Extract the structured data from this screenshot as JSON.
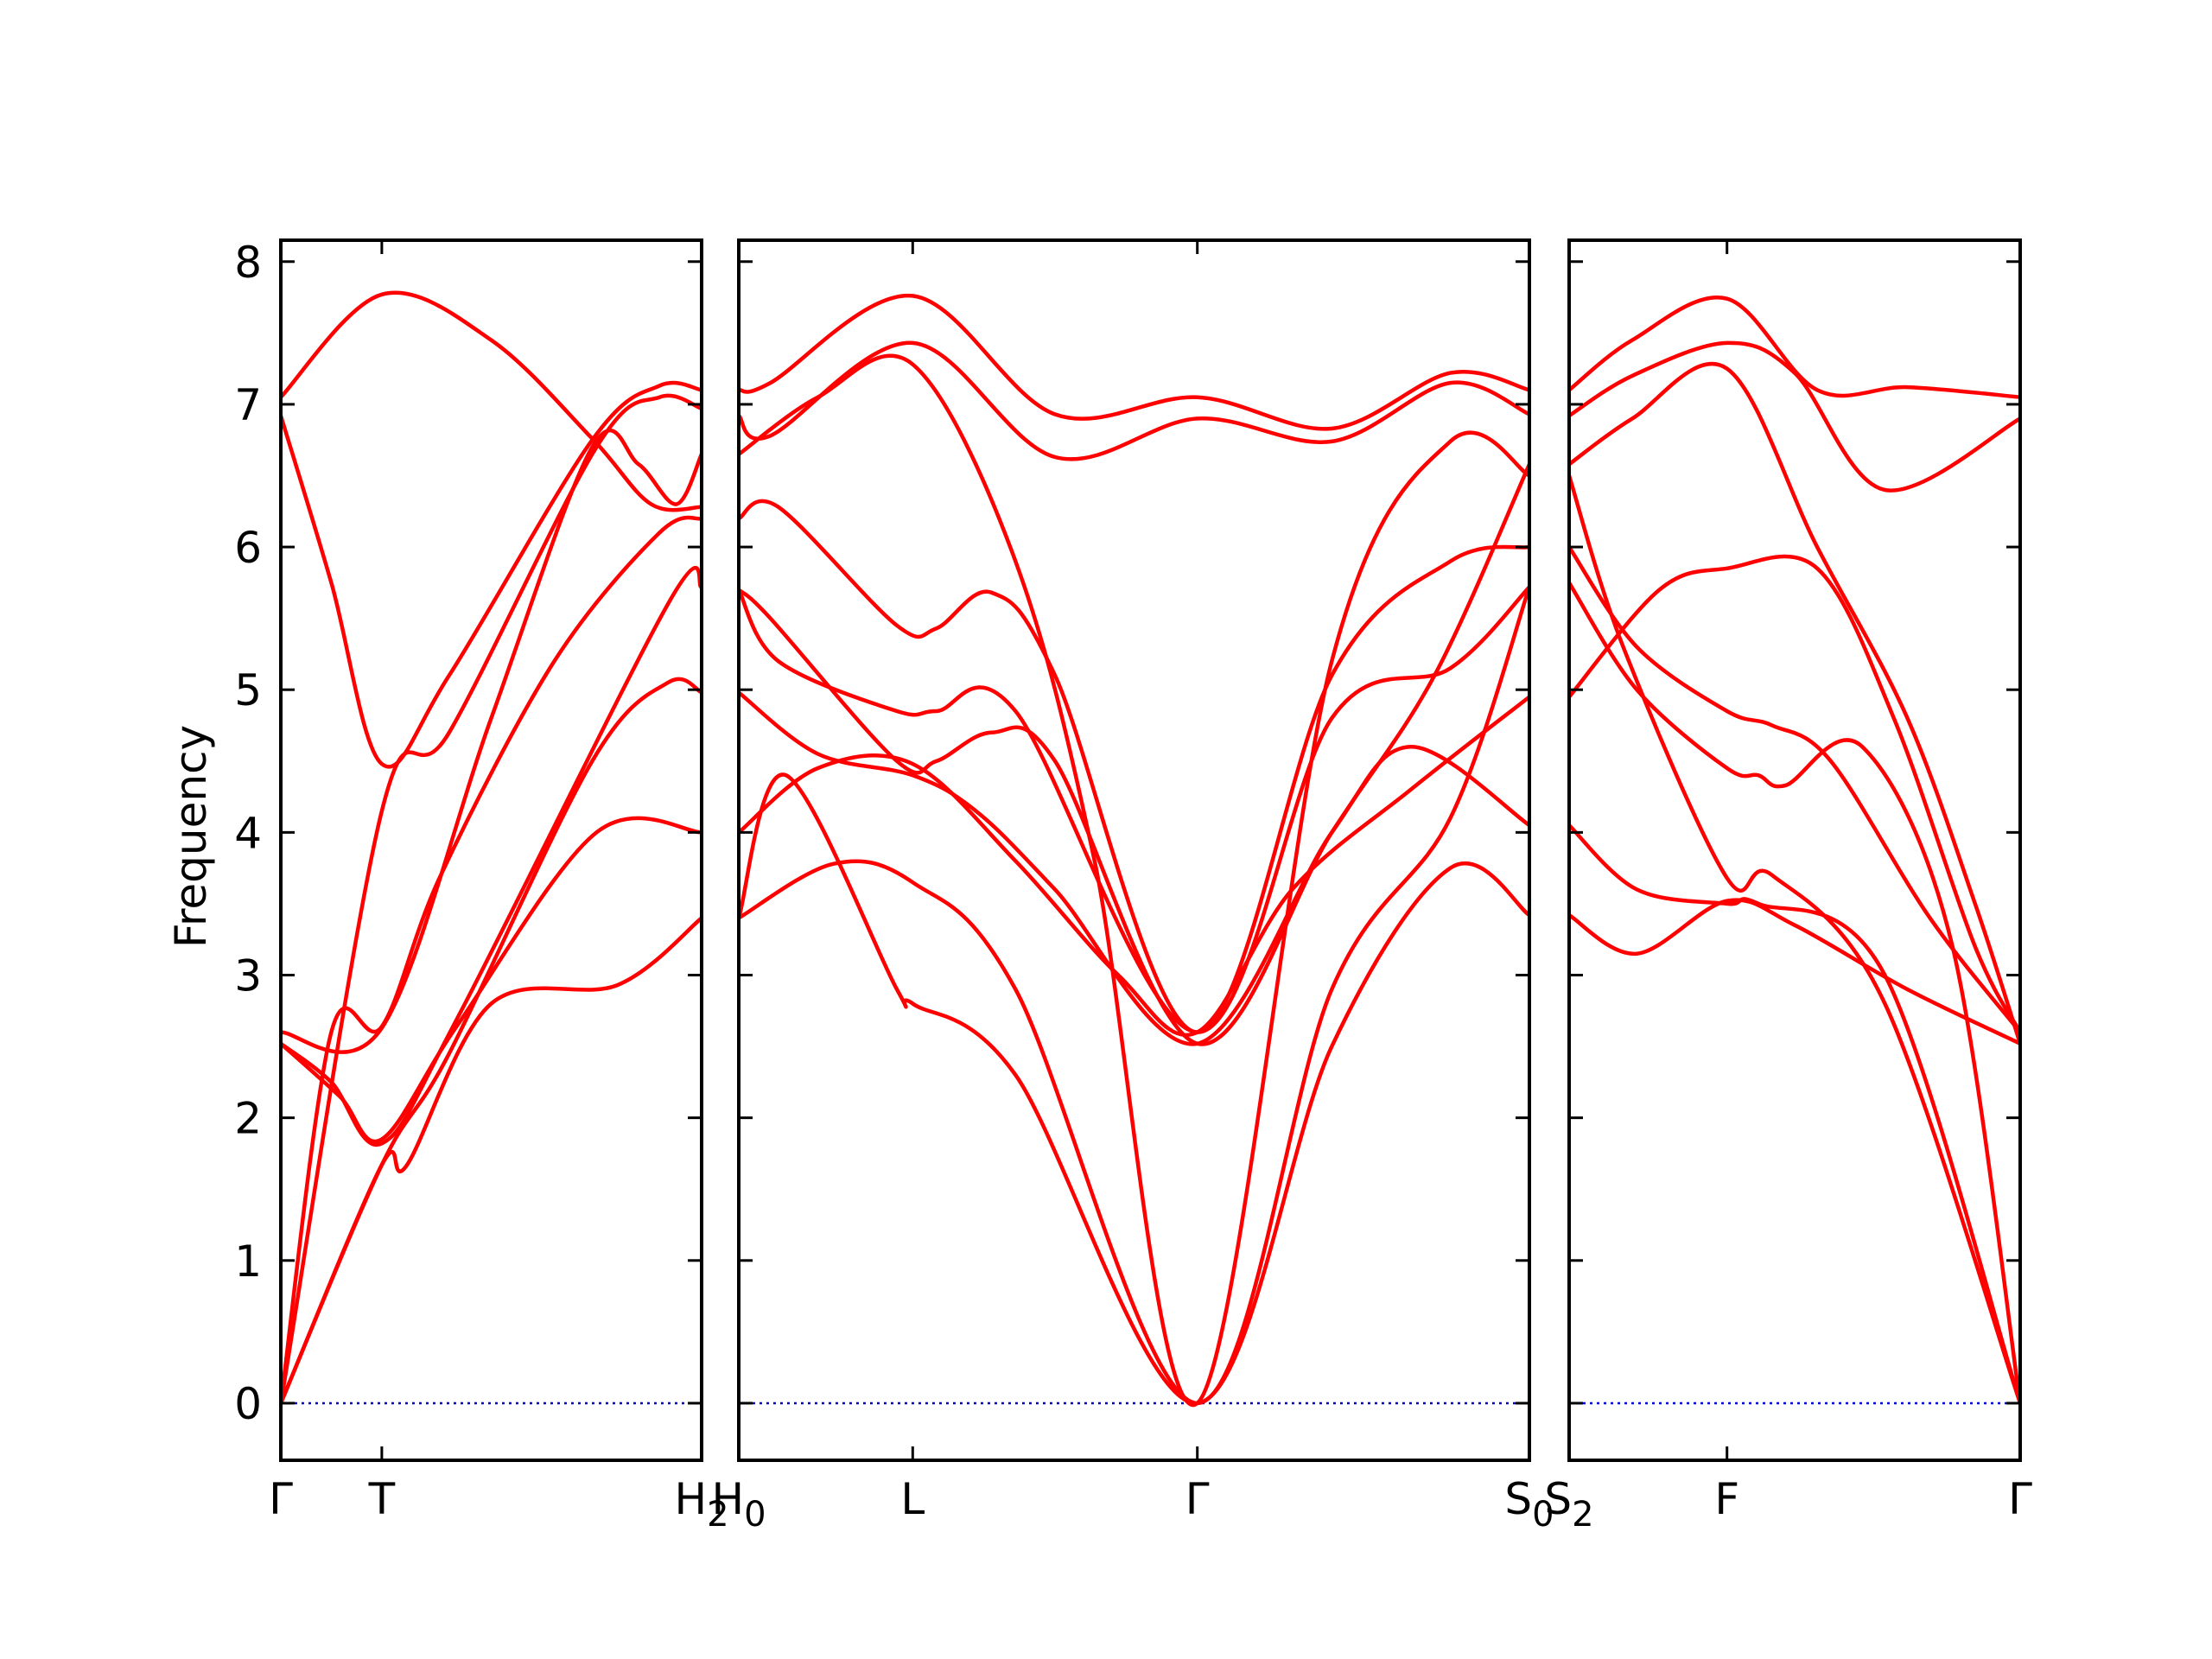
{
  "chart_data": {
    "type": "line",
    "title": "",
    "ylabel": "Frequency",
    "ylim": [
      -0.4,
      8.15
    ],
    "yticks": [
      0,
      1,
      2,
      3,
      4,
      5,
      6,
      7,
      8
    ],
    "ytick_labels": [
      "0",
      "1",
      "2",
      "3",
      "4",
      "5",
      "6",
      "7",
      "8"
    ],
    "grid": false,
    "legend": "none",
    "colors": {
      "bands": "#ff0000",
      "zero_line": "#0000cc",
      "axes": "#000000"
    },
    "x_labels": [
      {
        "text": "Γ",
        "sub": ""
      },
      {
        "text": "T",
        "sub": ""
      },
      {
        "text": "H",
        "sub": "2"
      },
      {
        "text": "H",
        "sub": "0"
      },
      {
        "text": "L",
        "sub": ""
      },
      {
        "text": "Γ",
        "sub": ""
      },
      {
        "text": "S",
        "sub": "0"
      },
      {
        "text": "S",
        "sub": "2"
      },
      {
        "text": "F",
        "sub": ""
      },
      {
        "text": "Γ",
        "sub": ""
      }
    ],
    "panels": [
      {
        "xrange": [
          0,
          1
        ],
        "ticks": [
          0,
          0.24,
          1
        ],
        "series": [
          {
            "x": [
              0,
              0.24,
              0.5,
              0.74,
              0.88,
              1
            ],
            "y": [
              7.05,
              7.77,
              7.45,
              6.76,
              6.3,
              6.28
            ]
          },
          {
            "x": [
              0,
              0.12,
              0.24,
              0.4,
              0.74,
              0.9,
              1
            ],
            "y": [
              6.92,
              5.75,
              4.48,
              5.1,
              6.75,
              7.13,
              7.1
            ]
          },
          {
            "x": [
              0,
              0.24,
              0.4,
              0.75,
              0.9,
              1
            ],
            "y": [
              0,
              4.15,
              4.7,
              6.7,
              7.05,
              6.97
            ]
          },
          {
            "x": [
              0,
              0.24,
              0.5,
              0.74,
              0.85,
              0.94,
              1
            ],
            "y": [
              2.6,
              2.63,
              4.8,
              6.7,
              6.58,
              6.3,
              6.65
            ]
          },
          {
            "x": [
              0,
              0.12,
              0.24,
              0.38,
              0.65,
              0.9,
              1
            ],
            "y": [
              0,
              2.6,
              2.64,
              3.7,
              5.2,
              6.1,
              6.2
            ]
          },
          {
            "x": [
              0,
              0.12,
              0.24,
              0.42,
              0.92,
              1
            ],
            "y": [
              2.52,
              2.25,
              1.82,
              2.7,
              5.6,
              5.72
            ]
          },
          {
            "x": [
              0,
              0.24,
              0.4,
              0.74,
              0.92,
              1
            ],
            "y": [
              0,
              1.67,
              2.45,
              4.5,
              5.05,
              4.98
            ]
          },
          {
            "x": [
              0,
              0.14,
              0.24,
              0.42,
              0.75,
              1
            ],
            "y": [
              2.52,
              2.15,
              1.85,
              2.65,
              4.0,
              4.0
            ]
          },
          {
            "x": [
              0,
              0.24,
              0.3,
              0.5,
              0.8,
              1
            ],
            "y": [
              0,
              1.67,
              1.67,
              2.8,
              2.93,
              3.4
            ]
          }
        ]
      },
      {
        "xrange": [
          0,
          1
        ],
        "ticks": [
          0,
          0.22,
          0.58,
          1
        ],
        "series": [
          {
            "x": [
              0,
              0.04,
              0.22,
              0.4,
              0.58,
              0.75,
              0.9,
              1
            ],
            "y": [
              7.1,
              7.15,
              7.76,
              6.93,
              7.05,
              6.83,
              7.22,
              7.1
            ]
          },
          {
            "x": [
              0,
              0.04,
              0.22,
              0.4,
              0.58,
              0.75,
              0.9,
              1
            ],
            "y": [
              6.92,
              6.78,
              7.43,
              6.63,
              6.9,
              6.74,
              7.15,
              6.93
            ]
          },
          {
            "x": [
              0,
              0.1,
              0.22,
              0.35,
              0.45,
              0.58,
              0.75,
              0.9,
              1
            ],
            "y": [
              6.65,
              7.05,
              7.28,
              5.9,
              3.8,
              0,
              5.2,
              6.74,
              6.5
            ]
          },
          {
            "x": [
              0,
              0.05,
              0.2,
              0.25,
              0.32,
              0.4,
              0.58,
              0.75,
              0.9,
              1
            ],
            "y": [
              6.2,
              6.28,
              5.45,
              5.43,
              5.68,
              5.1,
              2.6,
              5.1,
              5.9,
              6.0
            ]
          },
          {
            "x": [
              0,
              0.04,
              0.2,
              0.25,
              0.32,
              0.4,
              0.58,
              0.75,
              0.88,
              1
            ],
            "y": [
              5.7,
              5.5,
              4.5,
              4.5,
              4.7,
              4.5,
              2.52,
              4.0,
              5.1,
              6.58
            ]
          },
          {
            "x": [
              0,
              0.1,
              0.22,
              0.3,
              0.4,
              0.58,
              0.75,
              0.85,
              1
            ],
            "y": [
              4.98,
              4.55,
              4.4,
              4.15,
              3.6,
              2.52,
              4.0,
              4.6,
              4.05
            ]
          },
          {
            "x": [
              0,
              0.05,
              0.2,
              0.25,
              0.35,
              0.58,
              0.75,
              0.9,
              1
            ],
            "y": [
              5.7,
              5.2,
              4.85,
              4.85,
              4.85,
              2.6,
              4.8,
              5.15,
              5.72
            ]
          },
          {
            "x": [
              0,
              0.1,
              0.22,
              0.35,
              0.48,
              0.58,
              0.7,
              0.85,
              1
            ],
            "y": [
              4.0,
              4.45,
              4.48,
              3.8,
              3.0,
              2.6,
              3.6,
              4.3,
              4.95
            ]
          },
          {
            "x": [
              0,
              0.06,
              0.2,
              0.22,
              0.35,
              0.58,
              0.75,
              0.9,
              1
            ],
            "y": [
              3.4,
              4.4,
              2.9,
              2.8,
              2.3,
              0,
              2.5,
              3.75,
              3.42
            ]
          },
          {
            "x": [
              0,
              0.12,
              0.22,
              0.35,
              0.58,
              0.75,
              0.9,
              1
            ],
            "y": [
              3.4,
              3.78,
              3.65,
              2.9,
              0,
              2.9,
              4.1,
              5.72
            ]
          }
        ]
      },
      {
        "xrange": [
          0,
          1
        ],
        "ticks": [
          0,
          0.35,
          1
        ],
        "series": [
          {
            "x": [
              0,
              0.14,
              0.35,
              0.55,
              0.75,
              1
            ],
            "y": [
              7.1,
              7.45,
              7.74,
              7.1,
              7.12,
              7.05
            ]
          },
          {
            "x": [
              0,
              0.14,
              0.35,
              0.5,
              0.7,
              1
            ],
            "y": [
              6.92,
              7.2,
              7.43,
              7.22,
              6.4,
              6.9
            ]
          },
          {
            "x": [
              0,
              0.14,
              0.35,
              0.55,
              0.75,
              0.9,
              1
            ],
            "y": [
              6.58,
              6.9,
              7.25,
              6.0,
              4.8,
              3.5,
              2.52
            ]
          },
          {
            "x": [
              0,
              0.2,
              0.35,
              0.55,
              0.72,
              0.9,
              1
            ],
            "y": [
              4.95,
              5.7,
              5.85,
              5.85,
              4.8,
              3.2,
              2.6
            ]
          },
          {
            "x": [
              0,
              0.15,
              0.35,
              0.45,
              0.58,
              0.8,
              1
            ],
            "y": [
              6.0,
              5.3,
              4.85,
              4.75,
              4.5,
              3.4,
              2.6
            ]
          },
          {
            "x": [
              0,
              0.15,
              0.35,
              0.42,
              0.48,
              0.65,
              0.85,
              1
            ],
            "y": [
              5.75,
              5.0,
              4.45,
              4.4,
              4.33,
              4.6,
              3.2,
              0
            ]
          },
          {
            "x": [
              0,
              0.12,
              0.35,
              0.45,
              0.7,
              1
            ],
            "y": [
              6.5,
              5.3,
              3.68,
              3.7,
              2.8,
              0
            ]
          },
          {
            "x": [
              0,
              0.15,
              0.35,
              0.42,
              0.7,
              1
            ],
            "y": [
              4.05,
              3.6,
              3.5,
              3.5,
              3.0,
              0
            ]
          },
          {
            "x": [
              0,
              0.15,
              0.35,
              0.5,
              0.75,
              1
            ],
            "y": [
              3.42,
              3.15,
              3.52,
              3.35,
              2.9,
              2.52
            ]
          }
        ]
      }
    ]
  }
}
